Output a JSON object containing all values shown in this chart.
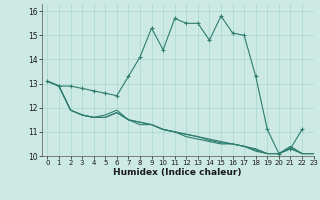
{
  "xlabel": "Humidex (Indice chaleur)",
  "xlim": [
    -0.5,
    23
  ],
  "ylim": [
    10,
    16.3
  ],
  "yticks": [
    10,
    11,
    12,
    13,
    14,
    15,
    16
  ],
  "xticks": [
    0,
    1,
    2,
    3,
    4,
    5,
    6,
    7,
    8,
    9,
    10,
    11,
    12,
    13,
    14,
    15,
    16,
    17,
    18,
    19,
    20,
    21,
    22,
    23
  ],
  "bg_color": "#cce9e4",
  "line_color": "#2e7d6e",
  "grid_color": "#a8d8ce",
  "series1": {
    "y": [
      13.1,
      12.9,
      12.9,
      12.8,
      12.7,
      12.6,
      12.5,
      13.3,
      14.1,
      15.3,
      14.4,
      15.7,
      15.5,
      15.5,
      14.8,
      15.8,
      15.1,
      15.0,
      13.3,
      11.1,
      10.1,
      10.3,
      11.1,
      null
    ],
    "marker": true
  },
  "series2": {
    "y": [
      13.1,
      12.9,
      11.9,
      11.7,
      11.6,
      11.6,
      11.8,
      11.5,
      11.4,
      11.3,
      11.1,
      11.0,
      10.9,
      10.8,
      10.7,
      10.6,
      10.5,
      10.4,
      10.3,
      10.1,
      10.1,
      10.4,
      10.1,
      10.1
    ],
    "marker": false
  },
  "series3": {
    "y": [
      13.1,
      12.9,
      11.9,
      11.7,
      11.6,
      11.7,
      11.9,
      11.5,
      11.3,
      11.3,
      11.1,
      11.0,
      10.8,
      10.7,
      10.6,
      10.5,
      10.5,
      10.4,
      10.2,
      10.1,
      10.1,
      10.3,
      10.1,
      10.1
    ],
    "marker": false
  },
  "series4": {
    "y": [
      13.1,
      12.9,
      11.9,
      11.7,
      11.6,
      11.6,
      11.8,
      11.5,
      11.4,
      11.3,
      11.1,
      11.0,
      10.9,
      10.8,
      10.65,
      10.55,
      10.5,
      10.4,
      10.25,
      10.1,
      10.1,
      10.35,
      10.1,
      10.1
    ],
    "marker": false
  }
}
